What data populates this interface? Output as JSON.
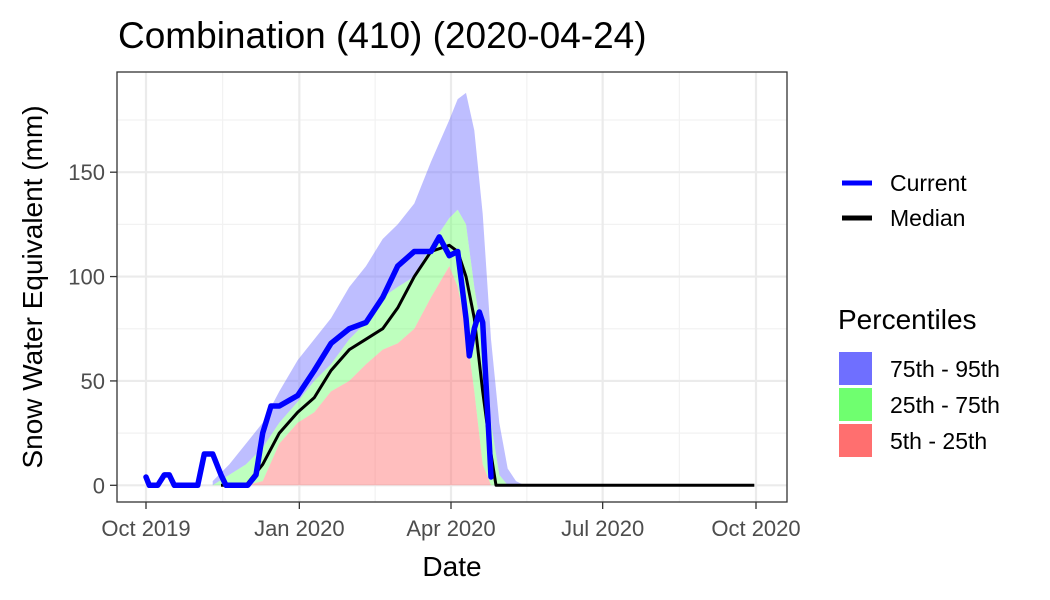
{
  "chart_data": {
    "type": "area",
    "title": "Combination (410) (2020-04-24)",
    "xlabel": "Date",
    "ylabel": "Snow Water Equivalent (mm)",
    "xlim": [
      "2019-10-01",
      "2020-10-01"
    ],
    "ylim": [
      -8,
      198
    ],
    "x_ticks": [
      "2019-10-01",
      "2020-01-01",
      "2020-04-01",
      "2020-07-01",
      "2020-10-01"
    ],
    "x_tick_labels": [
      "Oct 2019",
      "Jan 2020",
      "Apr 2020",
      "Jul 2020",
      "Oct 2020"
    ],
    "y_ticks": [
      0,
      50,
      100,
      150
    ],
    "y_tick_labels": [
      "0",
      "50",
      "100",
      "150"
    ],
    "grid": true,
    "legend_position": "right",
    "colors": {
      "current": "#0000ff",
      "median": "#000000",
      "p75_95": "#6f6fff",
      "p25_75": "#6fff6f",
      "p5_25": "#ff6f6f"
    },
    "legend": {
      "lines": [
        {
          "key": "current",
          "label": "Current"
        },
        {
          "key": "median",
          "label": "Median"
        }
      ],
      "fill_title": "Percentiles",
      "fills": [
        {
          "key": "p75_95",
          "label": "75th - 95th"
        },
        {
          "key": "p25_75",
          "label": "25th - 75th"
        },
        {
          "key": "p5_25",
          "label": "5th - 25th"
        }
      ]
    },
    "bands": {
      "dates": [
        "2019-11-10",
        "2019-11-20",
        "2019-11-30",
        "2019-12-10",
        "2019-12-20",
        "2019-12-31",
        "2020-01-10",
        "2020-01-20",
        "2020-01-31",
        "2020-02-10",
        "2020-02-20",
        "2020-02-29",
        "2020-03-10",
        "2020-03-20",
        "2020-03-31",
        "2020-04-05",
        "2020-04-10",
        "2020-04-15",
        "2020-04-20",
        "2020-04-25",
        "2020-04-30",
        "2020-05-05",
        "2020-05-10",
        "2020-05-15",
        "2020-05-20"
      ],
      "p5": [
        0,
        0,
        0,
        0,
        0,
        0,
        0,
        0,
        0,
        0,
        0,
        0,
        0,
        0,
        0,
        0,
        0,
        0,
        0,
        0,
        0,
        0,
        0,
        0,
        0
      ],
      "p25": [
        0,
        0,
        0,
        2,
        20,
        30,
        35,
        45,
        50,
        58,
        65,
        68,
        75,
        90,
        105,
        95,
        75,
        45,
        10,
        0,
        0,
        0,
        0,
        0,
        0
      ],
      "p75": [
        0,
        5,
        10,
        18,
        30,
        40,
        50,
        58,
        70,
        78,
        90,
        95,
        100,
        115,
        128,
        132,
        125,
        95,
        70,
        30,
        5,
        0,
        0,
        0,
        0
      ],
      "p95": [
        2,
        10,
        20,
        30,
        45,
        60,
        70,
        80,
        95,
        105,
        118,
        125,
        135,
        155,
        175,
        185,
        188,
        170,
        130,
        70,
        30,
        8,
        2,
        0,
        0
      ]
    },
    "series": [
      {
        "name": "Median",
        "x": [
          "2019-11-15",
          "2019-11-30",
          "2019-12-10",
          "2019-12-20",
          "2019-12-31",
          "2020-01-10",
          "2020-01-20",
          "2020-01-31",
          "2020-02-10",
          "2020-02-20",
          "2020-02-29",
          "2020-03-10",
          "2020-03-20",
          "2020-03-31",
          "2020-04-05",
          "2020-04-10",
          "2020-04-15",
          "2020-04-20",
          "2020-04-25",
          "2020-04-28",
          "2020-05-01",
          "2020-09-30"
        ],
        "y": [
          0,
          0,
          10,
          25,
          35,
          42,
          55,
          65,
          70,
          75,
          85,
          100,
          112,
          115,
          112,
          100,
          80,
          45,
          15,
          0,
          0,
          0
        ]
      },
      {
        "name": "Current",
        "x": [
          "2019-10-01",
          "2019-10-03",
          "2019-10-08",
          "2019-10-12",
          "2019-10-15",
          "2019-10-18",
          "2019-10-20",
          "2019-11-01",
          "2019-11-05",
          "2019-11-10",
          "2019-11-15",
          "2019-11-18",
          "2019-11-22",
          "2019-12-01",
          "2019-12-06",
          "2019-12-10",
          "2019-12-15",
          "2019-12-20",
          "2019-12-31",
          "2020-01-10",
          "2020-01-20",
          "2020-01-31",
          "2020-02-10",
          "2020-02-20",
          "2020-02-29",
          "2020-03-10",
          "2020-03-20",
          "2020-03-25",
          "2020-03-31",
          "2020-04-05",
          "2020-04-10",
          "2020-04-12",
          "2020-04-15",
          "2020-04-18",
          "2020-04-20",
          "2020-04-24",
          "2020-04-25"
        ],
        "y": [
          4,
          0,
          0,
          5,
          5,
          0,
          0,
          0,
          15,
          15,
          5,
          0,
          0,
          0,
          5,
          25,
          38,
          38,
          43,
          55,
          68,
          75,
          78,
          90,
          105,
          112,
          112,
          119,
          110,
          112,
          80,
          62,
          75,
          83,
          78,
          20,
          4
        ]
      }
    ]
  }
}
